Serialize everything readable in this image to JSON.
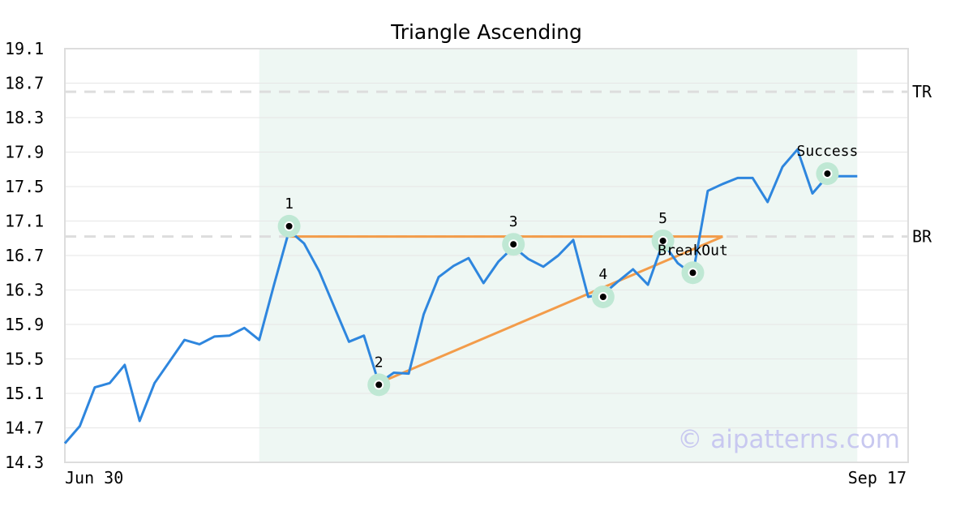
{
  "chart_data": {
    "type": "line",
    "title": "Triangle Ascending",
    "x_range_labels": [
      "Jun 30",
      "Sep 17"
    ],
    "ylim": [
      14.3,
      19.1
    ],
    "y_ticks": [
      "19.1",
      "18.7",
      "18.3",
      "17.9",
      "17.5",
      "17.1",
      "16.7",
      "16.3",
      "15.9",
      "15.5",
      "15.1",
      "14.7",
      "14.3"
    ],
    "grid": true,
    "colors": {
      "price": "#2e86de",
      "pattern_lines": "#f39c4a",
      "highlight_band": "#eef7f3",
      "marker_halo": "#bfe8d4",
      "level_dash": "#dddddd",
      "watermark": "#c8c8f0"
    },
    "series": [
      {
        "values": [
          14.52,
          14.72,
          15.17,
          15.22,
          15.43,
          14.78,
          15.22,
          15.47,
          15.72,
          15.67,
          15.76,
          15.77,
          15.86,
          15.72,
          16.37,
          16.99,
          16.84,
          16.52,
          16.11,
          15.7,
          15.77,
          15.22,
          15.34,
          15.33,
          16.02,
          16.45,
          16.58,
          16.67,
          16.38,
          16.63,
          16.8,
          16.66,
          16.57,
          16.7,
          16.88,
          16.22,
          16.25,
          16.4,
          16.54,
          16.36,
          16.85,
          16.61,
          16.48,
          17.45,
          17.53,
          17.6,
          17.6,
          17.32,
          17.73,
          17.93,
          17.42,
          17.62,
          17.62,
          17.62
        ]
      }
    ],
    "highlight_range_index": [
      13,
      53
    ],
    "levels": [
      {
        "label": "TR",
        "y": 18.6
      },
      {
        "label": "BR",
        "y": 16.92
      }
    ],
    "pattern_lines": [
      {
        "x1": 15,
        "y1": 16.92,
        "x2": 44,
        "y2": 16.92
      },
      {
        "x1": 21,
        "y1": 15.22,
        "x2": 44,
        "y2": 16.92
      }
    ],
    "points": [
      {
        "label": "1",
        "x": 15,
        "y": 17.04,
        "halo": true
      },
      {
        "label": "2",
        "x": 21,
        "y": 15.2,
        "halo": true
      },
      {
        "label": "3",
        "x": 30,
        "y": 16.83,
        "halo": true
      },
      {
        "label": "4",
        "x": 36,
        "y": 16.22,
        "halo": true
      },
      {
        "label": "5",
        "x": 40,
        "y": 16.87,
        "halo": true
      },
      {
        "label": "BreakOut",
        "x": 42,
        "y": 16.5,
        "halo": true
      },
      {
        "label": "Success",
        "x": 51,
        "y": 17.65,
        "halo": true
      }
    ],
    "watermark": "© aipatterns.com"
  }
}
